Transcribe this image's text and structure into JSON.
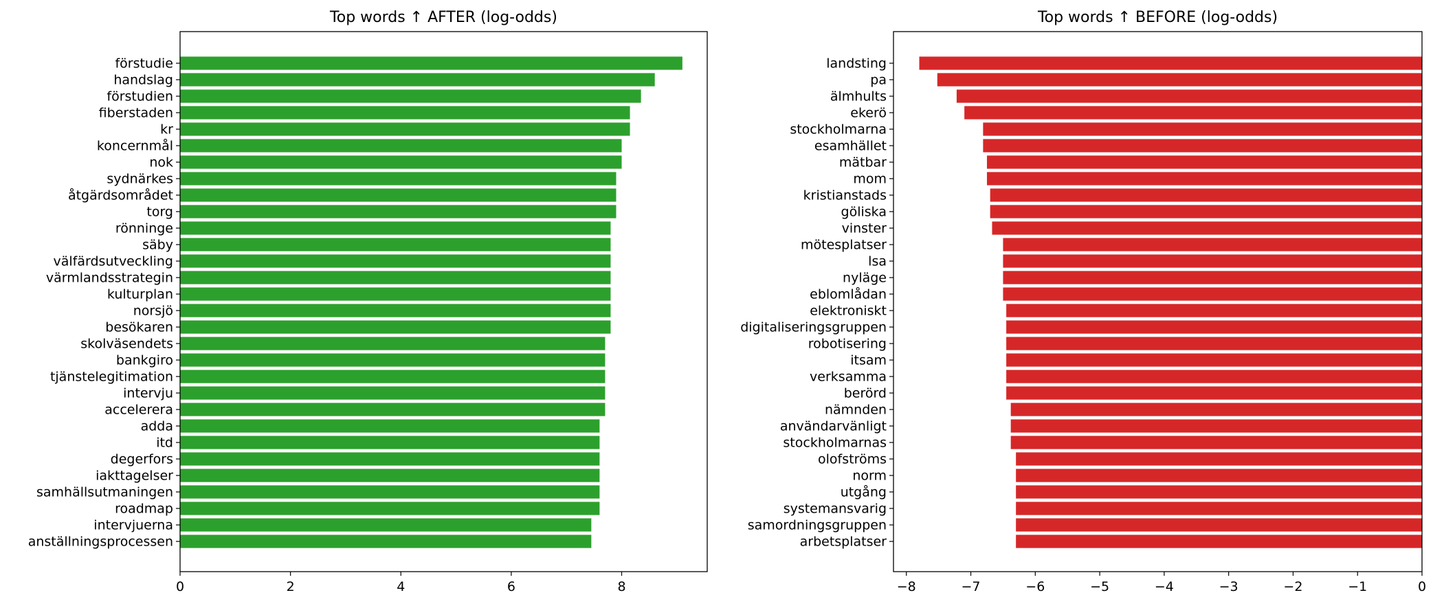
{
  "chart_data": [
    {
      "type": "bar",
      "orientation": "horizontal",
      "title": "Top words ↑ AFTER (log-odds)",
      "color": "#2ca02c",
      "xlim": [
        0,
        9.55
      ],
      "xticks": [
        0,
        2,
        4,
        6,
        8
      ],
      "categories": [
        "förstudie",
        "handslag",
        "förstudien",
        "fiberstaden",
        "kr",
        "koncernmål",
        "nok",
        "sydnärkes",
        "åtgärdsområdet",
        "torg",
        "rönninge",
        "säby",
        "välfärdsutveckling",
        "värmlandsstrategin",
        "kulturplan",
        "norsjö",
        "besökaren",
        "skolväsendets",
        "bankgiro",
        "tjänstelegitimation",
        "intervju",
        "accelerera",
        "adda",
        "itd",
        "degerfors",
        "iakttagelser",
        "samhällsutmaningen",
        "roadmap",
        "intervjuerna",
        "anställningsprocessen"
      ],
      "values": [
        9.1,
        8.6,
        8.35,
        8.15,
        8.15,
        8.0,
        8.0,
        7.9,
        7.9,
        7.9,
        7.8,
        7.8,
        7.8,
        7.8,
        7.8,
        7.8,
        7.8,
        7.7,
        7.7,
        7.7,
        7.7,
        7.7,
        7.6,
        7.6,
        7.6,
        7.6,
        7.6,
        7.6,
        7.45,
        7.45
      ]
    },
    {
      "type": "bar",
      "orientation": "horizontal",
      "title": "Top words ↑ BEFORE (log-odds)",
      "color": "#d62728",
      "xlim": [
        -8.2,
        0
      ],
      "xticks": [
        -8,
        -7,
        -6,
        -5,
        -4,
        -3,
        -2,
        -1,
        0
      ],
      "categories": [
        "landsting",
        "pa",
        "älmhults",
        "ekerö",
        "stockholmarna",
        "esamhället",
        "mätbar",
        "mom",
        "kristianstads",
        "göliska",
        "vinster",
        "mötesplatser",
        "lsa",
        "nyläge",
        "eblomlådan",
        "elektroniskt",
        "digitaliseringsgruppen",
        "robotisering",
        "itsam",
        "verksamma",
        "berörd",
        "nämnden",
        "användarvänligt",
        "stockholmarnas",
        "olofströms",
        "norm",
        "utgång",
        "systemansvarig",
        "samordningsgruppen",
        "arbetsplatser"
      ],
      "values": [
        -7.8,
        -7.52,
        -7.22,
        -7.1,
        -6.81,
        -6.81,
        -6.75,
        -6.75,
        -6.7,
        -6.7,
        -6.67,
        -6.5,
        -6.5,
        -6.5,
        -6.5,
        -6.45,
        -6.45,
        -6.45,
        -6.45,
        -6.45,
        -6.45,
        -6.38,
        -6.38,
        -6.38,
        -6.3,
        -6.3,
        -6.3,
        -6.3,
        -6.3,
        -6.3
      ]
    }
  ]
}
